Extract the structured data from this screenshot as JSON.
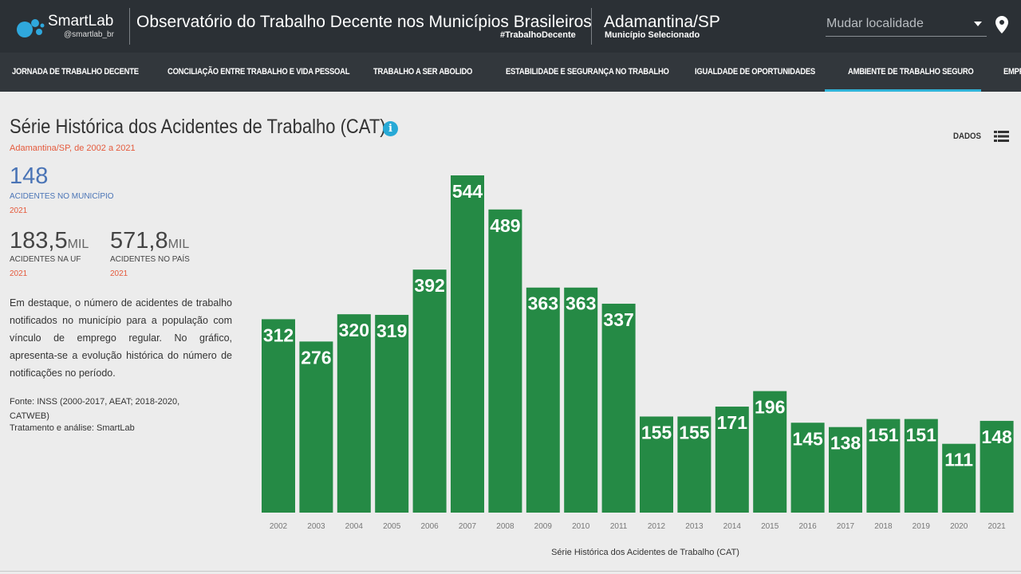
{
  "header": {
    "logo_name": "SmartLab",
    "logo_handle": "@smartlab_br",
    "title": "Observatório do Trabalho Decente nos Municípios Brasileiros",
    "hashtag": "#TrabalhoDecente",
    "city": "Adamantina/SP",
    "city_sub": "Município Selecionado",
    "location_placeholder": "Mudar localidade"
  },
  "nav": {
    "items": [
      "JORNADA DE TRABALHO DECENTE",
      "CONCILIAÇÃO ENTRE TRABALHO E VIDA PESSOAL",
      "TRABALHO A SER ABOLIDO",
      "ESTABILIDADE E SEGURANÇA NO TRABALHO",
      "IGUALDADE DE OPORTUNIDADES",
      "AMBIENTE DE TRABALHO SEGURO",
      "EMPR"
    ],
    "active_index": 5
  },
  "section": {
    "title": "Série Histórica dos Acidentes de Trabalho (CAT)",
    "subtitle": "Adamantina/SP, de 2002 a 2021",
    "dados_label": "DADOS"
  },
  "kpis": {
    "municipio": {
      "value": "148",
      "label": "ACIDENTES NO MUNICÍPIO",
      "year": "2021"
    },
    "uf": {
      "value": "183,5",
      "unit": "MIL",
      "label": "ACIDENTES NA UF",
      "year": "2021"
    },
    "pais": {
      "value": "571,8",
      "unit": "MIL",
      "label": "ACIDENTES NO PAÍS",
      "year": "2021"
    }
  },
  "description": "Em destaque, o número de acidentes de trabalho notificados no município para a população com vínculo de emprego regular. No gráfico, apresenta-se a evolução histórica do número de notificações no período.",
  "source": "Fonte: INSS (2000-2017, AEAT; 2018-2020, CATWEB)",
  "treatment": "Tratamento e análise: SmartLab",
  "colors": {
    "bar": "#258a45",
    "accent": "#30b3d8",
    "highlight": "#e55a3c",
    "kpi_blue": "#4a74b6"
  },
  "chart_data": {
    "type": "bar",
    "title": "Série Histórica dos Acidentes de Trabalho (CAT)",
    "xlabel": "Série Histórica dos Acidentes de Trabalho (CAT)",
    "ylabel": "",
    "categories": [
      "2002",
      "2003",
      "2004",
      "2005",
      "2006",
      "2007",
      "2008",
      "2009",
      "2010",
      "2011",
      "2012",
      "2013",
      "2014",
      "2015",
      "2016",
      "2017",
      "2018",
      "2019",
      "2020",
      "2021"
    ],
    "values": [
      312,
      276,
      320,
      319,
      392,
      544,
      489,
      363,
      363,
      337,
      155,
      155,
      171,
      196,
      145,
      138,
      151,
      151,
      111,
      148
    ],
    "ylim": [
      0,
      544
    ],
    "grid": false
  }
}
